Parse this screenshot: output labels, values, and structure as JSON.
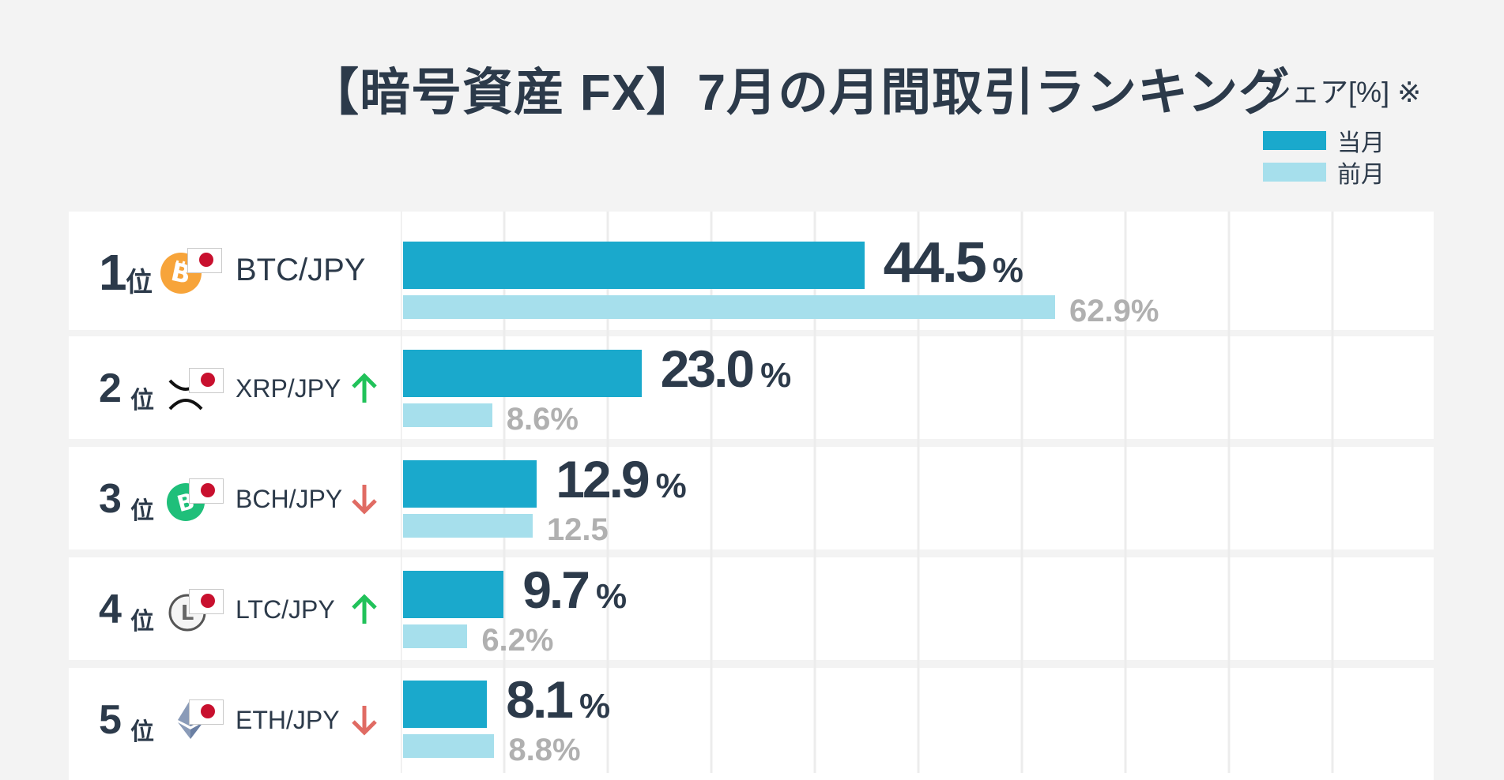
{
  "title": "【暗号資産 FX】7月の月間取引ランキング",
  "legend": {
    "title": "シェア[%] ※",
    "items": [
      {
        "label": "当月",
        "color": "#1aa9cc"
      },
      {
        "label": "前月",
        "color": "#a6dfec"
      }
    ]
  },
  "colors": {
    "current": "#1aa9cc",
    "previous": "#a6dfec",
    "up": "#21c25a",
    "down": "#e06b63"
  },
  "rows": [
    {
      "rank": "1",
      "suffix": "位",
      "pair": "BTC/JPY",
      "coin_icon": "bitcoin-icon",
      "trend": ""
    },
    {
      "rank": "2",
      "suffix": "位",
      "pair": "XRP/JPY",
      "coin_icon": "xrp-icon",
      "trend": "up"
    },
    {
      "rank": "3",
      "suffix": "位",
      "pair": "BCH/JPY",
      "coin_icon": "bitcoin-cash-icon",
      "trend": "down"
    },
    {
      "rank": "4",
      "suffix": "位",
      "pair": "LTC/JPY",
      "coin_icon": "litecoin-icon",
      "trend": "up"
    },
    {
      "rank": "5",
      "suffix": "位",
      "pair": "ETH/JPY",
      "coin_icon": "ethereum-icon",
      "trend": "down"
    }
  ],
  "chart_data": {
    "type": "bar",
    "orientation": "horizontal",
    "categories": [
      "BTC/JPY",
      "XRP/JPY",
      "BCH/JPY",
      "LTC/JPY",
      "ETH/JPY"
    ],
    "series": [
      {
        "name": "当月",
        "values": [
          44.5,
          23.0,
          12.9,
          9.7,
          8.1
        ],
        "labels": [
          "44.5",
          "23.0",
          "12.9",
          "9.7",
          "8.1"
        ],
        "unit": "%"
      },
      {
        "name": "前月",
        "values": [
          62.9,
          8.6,
          12.5,
          6.2,
          8.8
        ],
        "labels": [
          "62.9%",
          "8.6%",
          "12.5",
          "6.2%",
          "8.8%"
        ]
      }
    ],
    "xlim": [
      0,
      100
    ],
    "grid": true
  }
}
